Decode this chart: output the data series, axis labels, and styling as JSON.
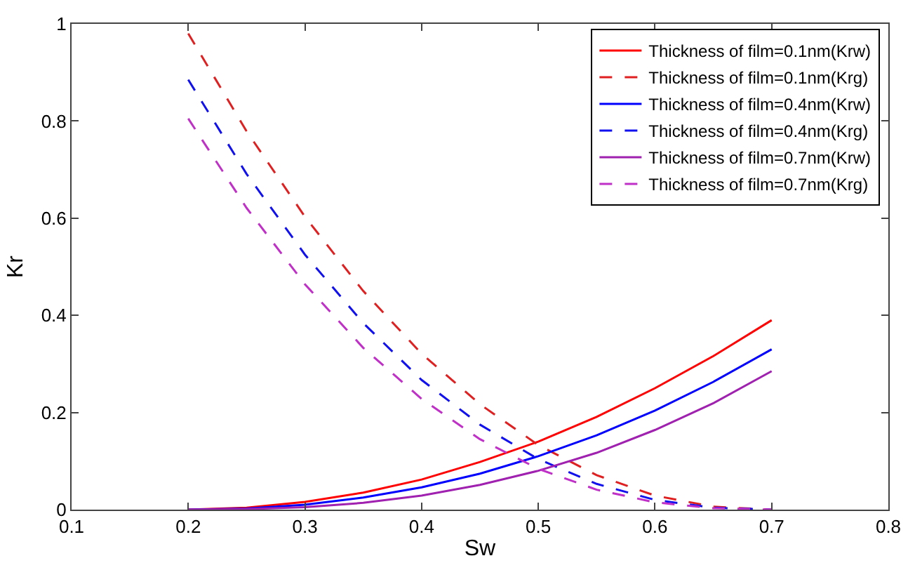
{
  "chart_data": {
    "type": "line",
    "xlabel": "Sw",
    "ylabel": "Kr",
    "x": [
      0.2,
      0.25,
      0.3,
      0.35,
      0.4,
      0.45,
      0.5,
      0.55,
      0.6,
      0.65,
      0.7
    ],
    "xlim": [
      0.1,
      0.8
    ],
    "xticks": [
      0.1,
      0.2,
      0.3,
      0.4,
      0.5,
      0.6,
      0.7,
      0.8
    ],
    "ylim": [
      0,
      1
    ],
    "yticks": [
      0,
      0.2,
      0.4,
      0.6,
      0.8,
      1
    ],
    "grid": false,
    "legend": "top right",
    "marker": "none",
    "series": [
      {
        "name": "Thickness of film=0.1nm(Krw)",
        "color": "#ff0000",
        "line_style": "solid",
        "values": [
          0,
          0.004,
          0.016,
          0.035,
          0.062,
          0.098,
          0.14,
          0.191,
          0.25,
          0.316,
          0.39
        ]
      },
      {
        "name": "Thickness of film=0.1nm(Krg)",
        "color": "#e02020",
        "line_style": "dashed",
        "values": [
          0.98,
          0.779,
          0.603,
          0.45,
          0.321,
          0.217,
          0.133,
          0.071,
          0.029,
          0.006,
          0
        ]
      },
      {
        "name": "Thickness of film=0.4nm(Krw)",
        "color": "#0000ff",
        "line_style": "solid",
        "values": [
          0,
          0.002,
          0.01,
          0.025,
          0.046,
          0.074,
          0.11,
          0.153,
          0.204,
          0.263,
          0.33
        ]
      },
      {
        "name": "Thickness of film=0.4nm(Krg)",
        "color": "#1010f0",
        "line_style": "dashed",
        "values": [
          0.885,
          0.691,
          0.525,
          0.384,
          0.267,
          0.175,
          0.104,
          0.053,
          0.02,
          0.004,
          0
        ]
      },
      {
        "name": "Thickness of film=0.7nm(Krw)",
        "color": "#a020b0",
        "line_style": "solid",
        "values": [
          0,
          0.001,
          0.005,
          0.014,
          0.029,
          0.051,
          0.08,
          0.117,
          0.164,
          0.219,
          0.285
        ]
      },
      {
        "name": "Thickness of film=0.7nm(Krg)",
        "color": "#c030c8",
        "line_style": "dashed",
        "values": [
          0.805,
          0.621,
          0.464,
          0.333,
          0.228,
          0.145,
          0.084,
          0.041,
          0.015,
          0.003,
          0
        ]
      }
    ]
  }
}
